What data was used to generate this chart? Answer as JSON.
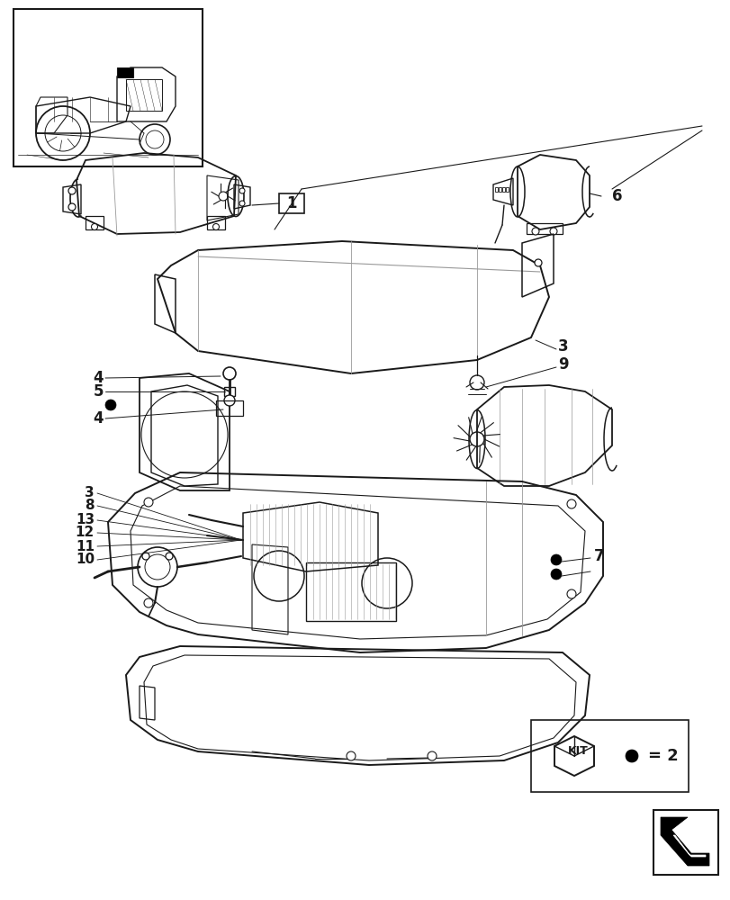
{
  "bg_color": "#ffffff",
  "line_color": "#1a1a1a",
  "gray_color": "#999999",
  "light_gray": "#cccccc"
}
